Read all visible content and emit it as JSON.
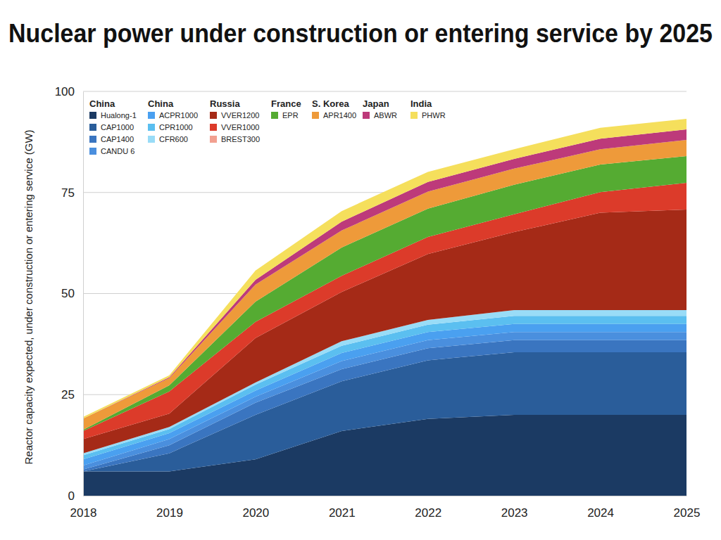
{
  "chart_data": {
    "type": "area",
    "stacked": true,
    "title": "Nuclear power under construction or entering service by 2025",
    "y_label": "Reactor capacity expected, under construction or entering service (GW)",
    "x": [
      2018,
      2019,
      2020,
      2021,
      2022,
      2023,
      2024,
      2025
    ],
    "xlim": [
      2018,
      2025
    ],
    "xticks": [
      2018,
      2019,
      2020,
      2021,
      2022,
      2023,
      2024,
      2025
    ],
    "ylim": [
      0,
      100
    ],
    "yticks": [
      0,
      25,
      50,
      75,
      100
    ],
    "grid": true,
    "legend": "top-left",
    "series": [
      {
        "name": "Hualong-1",
        "country": "China",
        "color": "#1b3a63",
        "values": [
          6,
          6,
          9,
          16,
          19,
          20,
          20,
          20
        ]
      },
      {
        "name": "CAP1000",
        "country": "China",
        "color": "#2a5d9a",
        "values": [
          0,
          4.5,
          11,
          12.3,
          14.5,
          15.5,
          15.5,
          15.5
        ]
      },
      {
        "name": "CAP1400",
        "country": "China",
        "color": "#3a75c0",
        "values": [
          0.5,
          2,
          3,
          3,
          3,
          3,
          3,
          3
        ]
      },
      {
        "name": "CANDU 6",
        "country": "China",
        "color": "#4a8fde",
        "values": [
          1,
          1.5,
          1.5,
          2,
          2,
          2,
          2,
          2
        ]
      },
      {
        "name": "ACPR1000",
        "country": "China",
        "color": "#4aa0f0",
        "values": [
          1.5,
          1.5,
          1.5,
          2,
          2,
          2,
          2,
          2
        ]
      },
      {
        "name": "CPR1000",
        "country": "China",
        "color": "#5bbff0",
        "values": [
          1,
          1,
          1.5,
          1.8,
          1.8,
          2,
          2,
          2
        ]
      },
      {
        "name": "CFR600",
        "country": "China",
        "color": "#99dcf7",
        "values": [
          0.5,
          0.5,
          0.5,
          1.1,
          1.2,
          1.4,
          1.4,
          1.4
        ]
      },
      {
        "name": "VVER1200",
        "country": "Russia",
        "color": "#a52a17",
        "values": [
          3.5,
          3.3,
          11,
          12.2,
          16.3,
          19.3,
          24.1,
          24.9
        ]
      },
      {
        "name": "VVER1000",
        "country": "Russia",
        "color": "#dc3b2a",
        "values": [
          2,
          5.5,
          4,
          4,
          4.2,
          4.4,
          5.1,
          6.6
        ]
      },
      {
        "name": "BREST300",
        "country": "Russia",
        "color": "#f2a090",
        "values": [
          0,
          0,
          0,
          0,
          0,
          0,
          0,
          0
        ]
      },
      {
        "name": "EPR",
        "country": "France",
        "color": "#55ab32",
        "values": [
          0.3,
          1.5,
          5,
          7,
          7,
          7.3,
          6.8,
          6.6
        ]
      },
      {
        "name": "APR1400",
        "country": "S. Korea",
        "color": "#ee9a3a",
        "values": [
          2.8,
          1.8,
          4.2,
          4.2,
          4.2,
          4,
          3.8,
          4
        ]
      },
      {
        "name": "ABWR",
        "country": "Japan",
        "color": "#bd3a7a",
        "values": [
          0,
          0.2,
          1.2,
          2.2,
          2.4,
          2.4,
          2.6,
          2.6
        ]
      },
      {
        "name": "PHWR",
        "country": "India",
        "color": "#f5df5c",
        "values": [
          0.4,
          0.5,
          2.3,
          2.6,
          2.5,
          2.4,
          2.7,
          2.6
        ]
      }
    ]
  }
}
